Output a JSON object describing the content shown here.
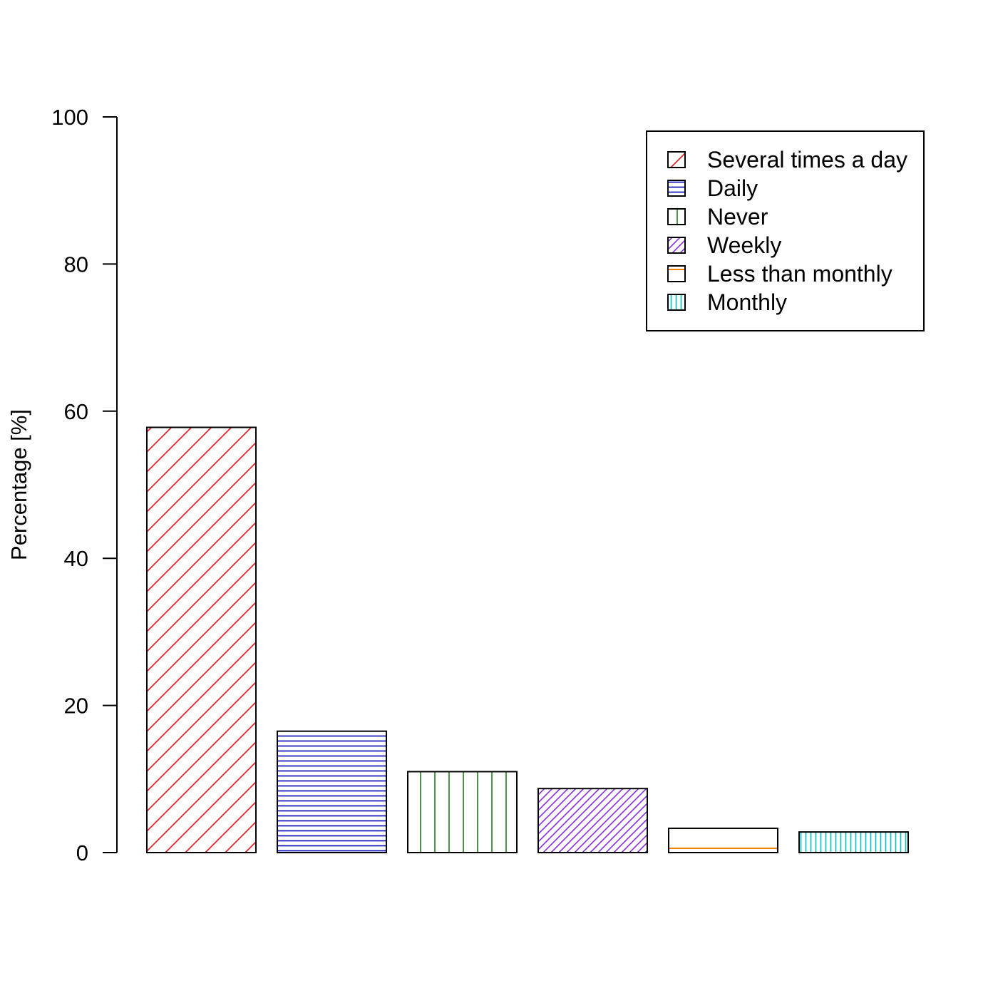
{
  "chart_data": {
    "type": "bar",
    "title": "",
    "xlabel": "",
    "ylabel": "Percentage [%]",
    "ylim": [
      0,
      100
    ],
    "yticks": [
      0,
      20,
      40,
      60,
      80,
      100
    ],
    "grid": false,
    "legend_position": "top-right",
    "series": [
      {
        "name": "Several times a day",
        "value": 57.8,
        "color": "#e8262a",
        "pattern": "diagonal-sparse"
      },
      {
        "name": "Daily",
        "value": 16.5,
        "color": "#0000b4",
        "pattern": "horizontal-dense"
      },
      {
        "name": "Never",
        "value": 11.0,
        "color": "#1a7f1a",
        "pattern": "vertical-sparse"
      },
      {
        "name": "Weekly",
        "value": 8.7,
        "color": "#8a2be2",
        "pattern": "diagonal-dense"
      },
      {
        "name": "Less than monthly",
        "value": 3.3,
        "color": "#f08000",
        "pattern": "horizontal-sparse"
      },
      {
        "name": "Monthly",
        "value": 2.8,
        "color": "#00bcbc",
        "pattern": "vertical-dense"
      }
    ]
  }
}
